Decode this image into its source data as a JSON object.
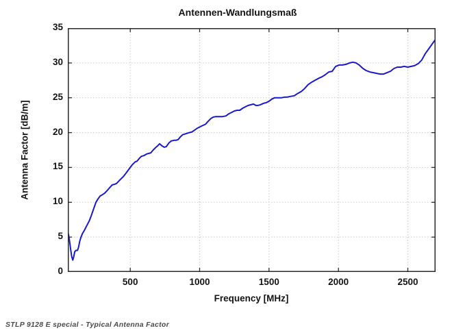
{
  "caption": "STLP 9128 E special - Typical Antenna Factor",
  "chart_data": {
    "type": "line",
    "title": "Antennen-Wandlungsmaß",
    "xlabel": "Frequency [MHz]",
    "ylabel": "Antenna Factor [dB/m]",
    "xlim": [
      50,
      2700
    ],
    "ylim": [
      0,
      35
    ],
    "xticks": [
      500,
      1000,
      1500,
      2000,
      2500
    ],
    "yticks": [
      0,
      5,
      10,
      15,
      20,
      25,
      30,
      35
    ],
    "grid": true,
    "grid_color": "#c9c9c9",
    "axis_color": "#2a2a2a",
    "line_color": "#1818cf",
    "line_width": 2,
    "legend_position": "none",
    "series": [
      {
        "name": "Typical Antenna Factor",
        "points": [
          [
            51,
            5.7
          ],
          [
            57,
            5.2
          ],
          [
            63,
            4.4
          ],
          [
            70,
            3.3
          ],
          [
            78,
            2.2
          ],
          [
            86,
            1.7
          ],
          [
            93,
            2.2
          ],
          [
            100,
            2.9
          ],
          [
            108,
            3.1
          ],
          [
            120,
            3.1
          ],
          [
            128,
            3.6
          ],
          [
            136,
            4.4
          ],
          [
            145,
            5.0
          ],
          [
            155,
            5.5
          ],
          [
            170,
            6.0
          ],
          [
            185,
            6.6
          ],
          [
            204,
            7.3
          ],
          [
            218,
            8.0
          ],
          [
            235,
            9.0
          ],
          [
            253,
            10.0
          ],
          [
            268,
            10.5
          ],
          [
            283,
            10.9
          ],
          [
            300,
            11.1
          ],
          [
            315,
            11.3
          ],
          [
            330,
            11.6
          ],
          [
            352,
            12.1
          ],
          [
            370,
            12.5
          ],
          [
            390,
            12.6
          ],
          [
            401,
            12.7
          ],
          [
            415,
            13.0
          ],
          [
            435,
            13.4
          ],
          [
            450,
            13.7
          ],
          [
            470,
            14.2
          ],
          [
            485,
            14.6
          ],
          [
            500,
            15.0
          ],
          [
            515,
            15.4
          ],
          [
            535,
            15.8
          ],
          [
            549,
            15.9
          ],
          [
            565,
            16.3
          ],
          [
            580,
            16.6
          ],
          [
            599,
            16.7
          ],
          [
            615,
            16.9
          ],
          [
            630,
            17.0
          ],
          [
            648,
            17.1
          ],
          [
            665,
            17.5
          ],
          [
            680,
            17.8
          ],
          [
            697,
            18.1
          ],
          [
            712,
            18.4
          ],
          [
            728,
            18.1
          ],
          [
            745,
            17.9
          ],
          [
            760,
            18.0
          ],
          [
            778,
            18.5
          ],
          [
            795,
            18.8
          ],
          [
            815,
            18.9
          ],
          [
            830,
            18.9
          ],
          [
            845,
            19.0
          ],
          [
            862,
            19.4
          ],
          [
            878,
            19.7
          ],
          [
            895,
            19.8
          ],
          [
            910,
            19.9
          ],
          [
            925,
            20.0
          ],
          [
            944,
            20.1
          ],
          [
            960,
            20.3
          ],
          [
            980,
            20.6
          ],
          [
            1000,
            20.8
          ],
          [
            1020,
            21.0
          ],
          [
            1042,
            21.2
          ],
          [
            1060,
            21.6
          ],
          [
            1080,
            22.0
          ],
          [
            1095,
            22.2
          ],
          [
            1115,
            22.3
          ],
          [
            1140,
            22.3
          ],
          [
            1165,
            22.3
          ],
          [
            1190,
            22.4
          ],
          [
            1210,
            22.7
          ],
          [
            1230,
            22.9
          ],
          [
            1250,
            23.1
          ],
          [
            1270,
            23.2
          ],
          [
            1289,
            23.2
          ],
          [
            1310,
            23.5
          ],
          [
            1330,
            23.7
          ],
          [
            1350,
            23.9
          ],
          [
            1370,
            24.0
          ],
          [
            1388,
            24.1
          ],
          [
            1405,
            23.9
          ],
          [
            1420,
            23.9
          ],
          [
            1437,
            24.0
          ],
          [
            1460,
            24.2
          ],
          [
            1480,
            24.3
          ],
          [
            1500,
            24.5
          ],
          [
            1520,
            24.8
          ],
          [
            1540,
            25.0
          ],
          [
            1565,
            25.0
          ],
          [
            1590,
            25.0
          ],
          [
            1615,
            25.1
          ],
          [
            1633,
            25.1
          ],
          [
            1655,
            25.2
          ],
          [
            1683,
            25.3
          ],
          [
            1705,
            25.6
          ],
          [
            1732,
            25.9
          ],
          [
            1755,
            26.3
          ],
          [
            1782,
            26.9
          ],
          [
            1805,
            27.2
          ],
          [
            1831,
            27.5
          ],
          [
            1858,
            27.8
          ],
          [
            1881,
            28.0
          ],
          [
            1905,
            28.3
          ],
          [
            1930,
            28.7
          ],
          [
            1955,
            28.8
          ],
          [
            1980,
            29.5
          ],
          [
            2005,
            29.7
          ],
          [
            2029,
            29.7
          ],
          [
            2055,
            29.8
          ],
          [
            2080,
            30.0
          ],
          [
            2105,
            30.1
          ],
          [
            2128,
            30.0
          ],
          [
            2150,
            29.7
          ],
          [
            2177,
            29.2
          ],
          [
            2200,
            28.9
          ],
          [
            2227,
            28.7
          ],
          [
            2253,
            28.6
          ],
          [
            2276,
            28.5
          ],
          [
            2300,
            28.4
          ],
          [
            2326,
            28.4
          ],
          [
            2350,
            28.6
          ],
          [
            2375,
            28.8
          ],
          [
            2400,
            29.2
          ],
          [
            2424,
            29.4
          ],
          [
            2450,
            29.4
          ],
          [
            2474,
            29.5
          ],
          [
            2500,
            29.4
          ],
          [
            2525,
            29.5
          ],
          [
            2548,
            29.6
          ],
          [
            2575,
            29.9
          ],
          [
            2600,
            30.4
          ],
          [
            2625,
            31.3
          ],
          [
            2650,
            32.0
          ],
          [
            2675,
            32.7
          ],
          [
            2700,
            33.4
          ]
        ]
      }
    ]
  }
}
